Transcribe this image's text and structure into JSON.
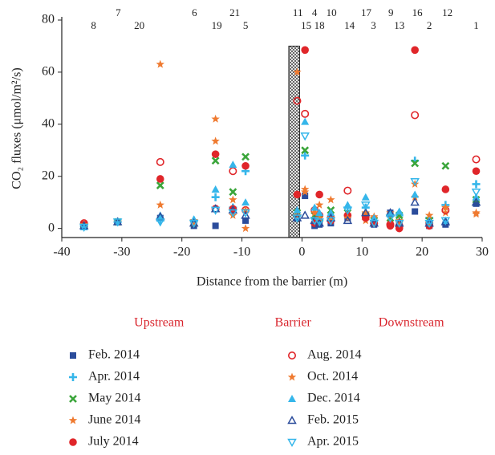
{
  "chart_data": {
    "type": "scatter",
    "xlabel": "Distance from the barrier (m)",
    "ylabel": "CO₂ fluxes (μmol/m²/s)",
    "xlim": [
      -40,
      30
    ],
    "xticks": [
      -40,
      -30,
      -20,
      -10,
      0,
      10,
      20,
      30
    ],
    "ylim": [
      -3.5,
      80
    ],
    "yticks": [
      0,
      20,
      40,
      60,
      80
    ],
    "x": [
      -36.3,
      -30.7,
      -23.6,
      -18,
      -14.4,
      -11.5,
      -9.4,
      -0.8,
      0.5,
      2.1,
      2.9,
      4.8,
      7.6,
      10.6,
      12.0,
      14.7,
      16.2,
      18.8,
      21.2,
      23.9,
      29
    ],
    "barrier": {
      "x": [
        -2.2,
        -0.4
      ],
      "y": [
        0,
        70
      ]
    },
    "station_labels_top": [
      {
        "text": "7",
        "x": -30.6
      },
      {
        "text": "6",
        "x": -17.9
      },
      {
        "text": "21",
        "x": -11.2
      },
      {
        "text": "11",
        "x": -0.7
      },
      {
        "text": "4",
        "x": 2.1
      },
      {
        "text": "10",
        "x": 4.9
      },
      {
        "text": "17",
        "x": 10.7
      },
      {
        "text": "9",
        "x": 14.8
      },
      {
        "text": "16",
        "x": 19.2
      },
      {
        "text": "12",
        "x": 24.2
      }
    ],
    "station_labels_bottom": [
      {
        "text": "8",
        "x": -34.7
      },
      {
        "text": "20",
        "x": -27.1
      },
      {
        "text": "19",
        "x": -14.2
      },
      {
        "text": "5",
        "x": -9.4
      },
      {
        "text": "15",
        "x": 0.7
      },
      {
        "text": "18",
        "x": 2.9
      },
      {
        "text": "14",
        "x": 7.9
      },
      {
        "text": "3",
        "x": 11.9
      },
      {
        "text": "13",
        "x": 16.2
      },
      {
        "text": "2",
        "x": 21.2
      },
      {
        "text": "1",
        "x": 29.0
      }
    ],
    "regions": [
      {
        "label": "Upstream",
        "x": -23.8
      },
      {
        "label": "Barrier",
        "x": -1.5
      },
      {
        "label": "Downstream",
        "x": 18.2
      }
    ],
    "region_color": "#d9262e",
    "series": [
      {
        "name": "Feb. 2014",
        "color": "#2b4c9b",
        "marker": "square",
        "values": [
          1,
          2.5,
          4,
          1,
          1,
          7,
          3,
          4,
          12.5,
          1,
          1.5,
          2,
          4,
          4.5,
          1.5,
          6,
          1,
          6.5,
          1,
          1.5,
          9.5
        ]
      },
      {
        "name": "Apr. 2014",
        "color": "#35b6ea",
        "marker": "plus",
        "values": [
          1,
          2.5,
          3,
          3,
          12,
          8,
          22,
          5,
          28,
          4,
          3,
          3,
          8,
          8,
          3,
          5,
          5,
          26,
          4,
          9,
          17
        ]
      },
      {
        "name": "May 2014",
        "color": "#3aa53a",
        "marker": "x",
        "values": [
          1.5,
          2.5,
          16.5,
          2,
          26,
          14,
          27.5,
          6,
          30,
          5,
          4,
          7,
          6,
          5,
          3,
          4,
          5,
          25,
          3,
          24,
          11
        ]
      },
      {
        "name": "June 2014",
        "color": "#ef7a30",
        "marker": "star",
        "values": [
          1,
          2.5,
          63,
          2,
          42,
          5,
          0,
          60,
          15,
          7,
          9,
          11,
          5,
          3,
          4,
          6,
          2,
          17,
          5,
          6,
          5.5
        ]
      },
      {
        "name": "July 2014",
        "color": "#e0262a",
        "marker": "circle",
        "values": [
          1.5,
          null,
          19,
          null,
          28.5,
          7.5,
          24,
          13,
          68.5,
          2,
          13,
          3,
          5,
          4,
          2,
          1,
          0,
          68.5,
          1,
          15,
          22
        ]
      },
      {
        "name": "Aug. 2014",
        "color": "#e0262a",
        "marker": "circle-open",
        "values": [
          2,
          null,
          25.5,
          null,
          7.5,
          22,
          7,
          49,
          44,
          7,
          5,
          4,
          14.5,
          5,
          2,
          1.5,
          1,
          43.5,
          2,
          7,
          26.5
        ]
      },
      {
        "name": "Oct. 2014",
        "color": "#ef7a30",
        "marker": "star",
        "values": [
          1.5,
          2.5,
          9,
          3,
          33.5,
          11,
          7,
          5,
          14,
          6,
          4,
          4,
          4,
          6,
          4.5,
          5,
          3,
          12,
          2,
          8,
          6
        ]
      },
      {
        "name": "Dec. 2014",
        "color": "#35b6ea",
        "marker": "triangle",
        "values": [
          0.5,
          2.5,
          5,
          3.5,
          15,
          24.5,
          10,
          7,
          41,
          8,
          6,
          6,
          9,
          12,
          4,
          5.5,
          6.5,
          13,
          3,
          3,
          12
        ]
      },
      {
        "name": "Feb. 2015",
        "color": "#2b4c9b",
        "marker": "triangle-open",
        "values": [
          1,
          2.5,
          4.5,
          2,
          7.5,
          7,
          5,
          4,
          5,
          3,
          2,
          4,
          3,
          6,
          2,
          6,
          2,
          10,
          2,
          2.5,
          10
        ]
      },
      {
        "name": "Apr. 2015",
        "color": "#35b6ea",
        "marker": "triangle-down-open",
        "values": [
          0.5,
          2.5,
          2.5,
          2,
          7,
          6,
          6,
          4,
          35.5,
          3,
          2.5,
          3,
          7,
          9,
          2,
          4,
          2,
          18,
          2,
          3,
          14
        ]
      }
    ]
  }
}
